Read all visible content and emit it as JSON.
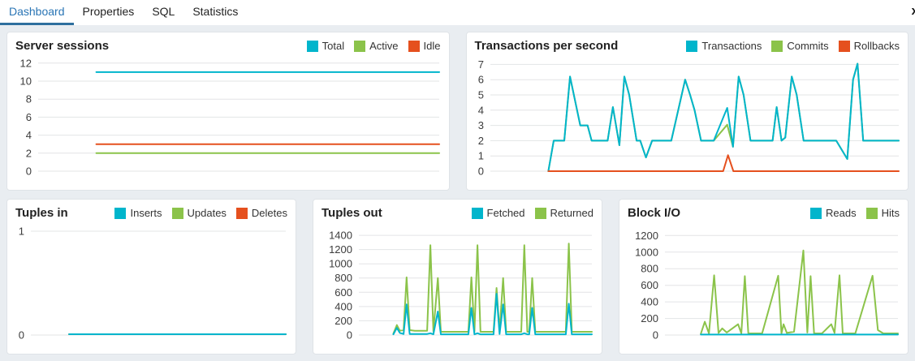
{
  "tabs": {
    "items": [
      {
        "label": "Dashboard",
        "active": true
      },
      {
        "label": "Properties",
        "active": false
      },
      {
        "label": "SQL",
        "active": false
      },
      {
        "label": "Statistics",
        "active": false
      }
    ],
    "close_label": "x"
  },
  "colors": {
    "accent_cyan": "#00b5cc",
    "accent_green": "#8bc34a",
    "accent_orange": "#e5501e",
    "tab_active_text": "#2a75b5",
    "tab_active_underline": "#2e6f9e"
  },
  "chart_data": "see charts",
  "charts": [
    {
      "id": "server-sessions",
      "title": "Server sessions",
      "type": "line",
      "legend": [
        {
          "label": "Total",
          "color": "#00b5cc"
        },
        {
          "label": "Active",
          "color": "#8bc34a"
        },
        {
          "label": "Idle",
          "color": "#e5501e"
        }
      ],
      "yticks": [
        0,
        2,
        4,
        6,
        8,
        10,
        12
      ],
      "ylim": [
        0,
        12.7
      ],
      "series": [
        {
          "name": "Active",
          "color": "#8bc34a",
          "points": [
            [
              14.5,
              2
            ],
            [
              100,
              2
            ]
          ]
        },
        {
          "name": "Idle",
          "color": "#e5501e",
          "points": [
            [
              14.5,
              3
            ],
            [
              100,
              3
            ]
          ]
        },
        {
          "name": "Total",
          "color": "#00b5cc",
          "points": [
            [
              14.5,
              11
            ],
            [
              100,
              11
            ]
          ]
        }
      ]
    },
    {
      "id": "transactions-per-second",
      "title": "Transactions per second",
      "type": "line",
      "legend": [
        {
          "label": "Transactions",
          "color": "#00b5cc"
        },
        {
          "label": "Commits",
          "color": "#8bc34a"
        },
        {
          "label": "Rollbacks",
          "color": "#e5501e"
        }
      ],
      "yticks": [
        0,
        1,
        2,
        3,
        4,
        5,
        6,
        7
      ],
      "ylim": [
        0,
        7.5
      ],
      "series": [
        {
          "name": "Commits",
          "color": "#8bc34a",
          "points": [
            [
              14.2,
              0
            ],
            [
              15.5,
              2
            ],
            [
              18.1,
              2
            ],
            [
              19.5,
              6.2
            ],
            [
              22,
              3
            ],
            [
              23.8,
              3
            ],
            [
              24.8,
              2
            ],
            [
              28.7,
              2
            ],
            [
              30,
              4.2
            ],
            [
              31.6,
              1.7
            ],
            [
              32.8,
              6.2
            ],
            [
              34,
              5
            ],
            [
              35.8,
              2
            ],
            [
              36.7,
              2
            ],
            [
              38.1,
              0.9
            ],
            [
              39.6,
              2
            ],
            [
              44.3,
              2
            ],
            [
              47.7,
              6
            ],
            [
              48.9,
              5
            ],
            [
              50,
              4
            ],
            [
              51.6,
              2
            ],
            [
              54.7,
              2
            ],
            [
              58,
              3.05
            ],
            [
              59.4,
              1.6
            ],
            [
              60.8,
              6.2
            ],
            [
              62,
              5
            ],
            [
              63.7,
              2
            ],
            [
              69.1,
              2
            ],
            [
              70.1,
              4.2
            ],
            [
              71.3,
              2
            ],
            [
              72.2,
              2.2
            ],
            [
              73.8,
              6.2
            ],
            [
              75,
              5
            ],
            [
              76.7,
              2
            ],
            [
              84.7,
              2
            ],
            [
              87.4,
              0.8
            ],
            [
              88.8,
              6
            ],
            [
              89.9,
              7.05
            ],
            [
              91.3,
              2
            ],
            [
              100,
              2
            ]
          ]
        },
        {
          "name": "Transactions",
          "color": "#00b5cc",
          "points": [
            [
              14.2,
              0
            ],
            [
              15.5,
              2
            ],
            [
              18.1,
              2
            ],
            [
              19.5,
              6.2
            ],
            [
              22,
              3
            ],
            [
              23.8,
              3
            ],
            [
              24.8,
              2
            ],
            [
              28.7,
              2
            ],
            [
              30,
              4.2
            ],
            [
              31.6,
              1.7
            ],
            [
              32.8,
              6.2
            ],
            [
              34,
              5
            ],
            [
              35.8,
              2
            ],
            [
              36.7,
              2
            ],
            [
              38.1,
              0.9
            ],
            [
              39.6,
              2
            ],
            [
              44.3,
              2
            ],
            [
              47.7,
              6
            ],
            [
              48.9,
              5
            ],
            [
              50,
              4
            ],
            [
              51.6,
              2
            ],
            [
              54.7,
              2
            ],
            [
              58,
              4.15
            ],
            [
              59.4,
              1.6
            ],
            [
              60.8,
              6.2
            ],
            [
              62,
              5
            ],
            [
              63.7,
              2
            ],
            [
              69.1,
              2
            ],
            [
              70.1,
              4.2
            ],
            [
              71.3,
              2
            ],
            [
              72.2,
              2.2
            ],
            [
              73.8,
              6.2
            ],
            [
              75,
              5
            ],
            [
              76.7,
              2
            ],
            [
              84.7,
              2
            ],
            [
              87.4,
              0.8
            ],
            [
              88.8,
              6
            ],
            [
              89.9,
              7.05
            ],
            [
              91.3,
              2
            ],
            [
              100,
              2
            ]
          ]
        },
        {
          "name": "Rollbacks",
          "color": "#e5501e",
          "points": [
            [
              14.2,
              0
            ],
            [
              57,
              0
            ],
            [
              58.2,
              1.05
            ],
            [
              59.5,
              0
            ],
            [
              100,
              0
            ]
          ]
        }
      ]
    },
    {
      "id": "tuples-in",
      "title": "Tuples in",
      "type": "line",
      "legend": [
        {
          "label": "Inserts",
          "color": "#00b5cc"
        },
        {
          "label": "Updates",
          "color": "#8bc34a"
        },
        {
          "label": "Deletes",
          "color": "#e5501e"
        }
      ],
      "yticks": [
        0,
        1
      ],
      "ylim": [
        0,
        1.07
      ],
      "series": [
        {
          "name": "Deletes",
          "color": "#e5501e",
          "points": [
            [
              15,
              0.008
            ],
            [
              100,
              0.008
            ]
          ]
        },
        {
          "name": "Updates",
          "color": "#8bc34a",
          "points": [
            [
              15,
              0.008
            ],
            [
              100,
              0.008
            ]
          ]
        },
        {
          "name": "Inserts",
          "color": "#00b5cc",
          "points": [
            [
              15,
              0.008
            ],
            [
              100,
              0.008
            ]
          ]
        }
      ]
    },
    {
      "id": "tuples-out",
      "title": "Tuples out",
      "type": "line",
      "legend": [
        {
          "label": "Fetched",
          "color": "#00b5cc"
        },
        {
          "label": "Returned",
          "color": "#8bc34a"
        }
      ],
      "yticks": [
        0,
        200,
        400,
        600,
        800,
        1000,
        1200,
        1400
      ],
      "ylim": [
        0,
        1560
      ],
      "series": [
        {
          "name": "Returned",
          "color": "#8bc34a",
          "points": [
            [
              14.8,
              20
            ],
            [
              16.3,
              140
            ],
            [
              17.6,
              60
            ],
            [
              19.2,
              70
            ],
            [
              20.5,
              810
            ],
            [
              21.8,
              70
            ],
            [
              24,
              60
            ],
            [
              29.3,
              60
            ],
            [
              30.7,
              1260
            ],
            [
              32,
              50
            ],
            [
              33.9,
              800
            ],
            [
              35.2,
              45
            ],
            [
              47,
              45
            ],
            [
              48.3,
              810
            ],
            [
              49.6,
              50
            ],
            [
              50.9,
              1260
            ],
            [
              52.2,
              45
            ],
            [
              57.8,
              45
            ],
            [
              59.1,
              660
            ],
            [
              60.4,
              50
            ],
            [
              61.9,
              800
            ],
            [
              63.2,
              45
            ],
            [
              69.7,
              45
            ],
            [
              71,
              1260
            ],
            [
              72.3,
              45
            ],
            [
              73.1,
              45
            ],
            [
              74.4,
              800
            ],
            [
              75.7,
              45
            ],
            [
              88.8,
              45
            ],
            [
              90.1,
              1285
            ],
            [
              91.4,
              45
            ],
            [
              100,
              45
            ]
          ]
        },
        {
          "name": "Fetched",
          "color": "#00b5cc",
          "points": [
            [
              14.8,
              10
            ],
            [
              16.3,
              100
            ],
            [
              17.6,
              30
            ],
            [
              19.2,
              15
            ],
            [
              20.5,
              430
            ],
            [
              21.8,
              15
            ],
            [
              29.3,
              15
            ],
            [
              30.7,
              25
            ],
            [
              32,
              10
            ],
            [
              33.9,
              330
            ],
            [
              35.2,
              10
            ],
            [
              47,
              10
            ],
            [
              48.3,
              380
            ],
            [
              49.6,
              10
            ],
            [
              50.9,
              25
            ],
            [
              52.2,
              10
            ],
            [
              57.8,
              10
            ],
            [
              59.1,
              580
            ],
            [
              60.4,
              15
            ],
            [
              61.9,
              430
            ],
            [
              63.2,
              10
            ],
            [
              69.7,
              10
            ],
            [
              71,
              25
            ],
            [
              72.3,
              10
            ],
            [
              73.1,
              10
            ],
            [
              74.4,
              380
            ],
            [
              75.7,
              10
            ],
            [
              88.8,
              10
            ],
            [
              90.1,
              440
            ],
            [
              91.4,
              10
            ],
            [
              100,
              10
            ]
          ]
        }
      ]
    },
    {
      "id": "block-io",
      "title": "Block I/O",
      "type": "line",
      "legend": [
        {
          "label": "Reads",
          "color": "#00b5cc"
        },
        {
          "label": "Hits",
          "color": "#8bc34a"
        }
      ],
      "yticks": [
        0,
        200,
        400,
        600,
        800,
        1000,
        1200
      ],
      "ylim": [
        0,
        1340
      ],
      "series": [
        {
          "name": "Hits",
          "color": "#8bc34a",
          "points": [
            [
              15.4,
              15
            ],
            [
              17.1,
              160
            ],
            [
              18.9,
              20
            ],
            [
              21.1,
              720
            ],
            [
              23,
              25
            ],
            [
              24.6,
              80
            ],
            [
              26.5,
              30
            ],
            [
              31.4,
              130
            ],
            [
              32.8,
              20
            ],
            [
              34.3,
              710
            ],
            [
              35.8,
              20
            ],
            [
              41.7,
              20
            ],
            [
              48.6,
              715
            ],
            [
              50,
              20
            ],
            [
              50.9,
              130
            ],
            [
              52.3,
              25
            ],
            [
              55.4,
              40
            ],
            [
              59.4,
              1020
            ],
            [
              61.1,
              30
            ],
            [
              62.5,
              710
            ],
            [
              64,
              20
            ],
            [
              67.4,
              20
            ],
            [
              71.4,
              130
            ],
            [
              72.8,
              25
            ],
            [
              74.9,
              720
            ],
            [
              76.3,
              20
            ],
            [
              81.7,
              20
            ],
            [
              89.1,
              715
            ],
            [
              91.4,
              60
            ],
            [
              93.7,
              20
            ],
            [
              100,
              20
            ]
          ]
        },
        {
          "name": "Reads",
          "color": "#00b5cc",
          "points": [
            [
              15.4,
              6
            ],
            [
              100,
              6
            ]
          ]
        }
      ]
    }
  ]
}
